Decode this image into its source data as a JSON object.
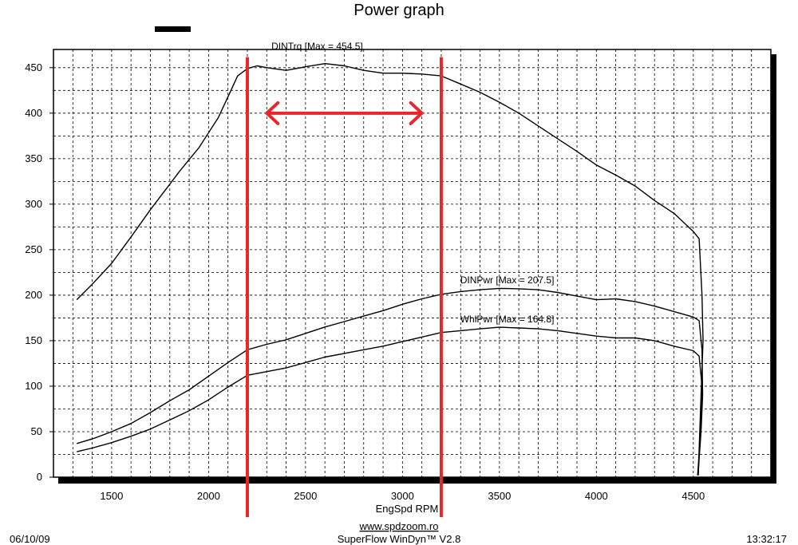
{
  "title": "Power graph",
  "footer": {
    "date": "06/10/09",
    "website": "www.spdzoom.ro",
    "software": "SuperFlow WinDyn™ V2.8",
    "time": "13:32:17"
  },
  "colors": {
    "annotation": "#e8262b",
    "curve": "#000000",
    "grid": "#000000",
    "legend_swatch": "#000000"
  },
  "chart_data": {
    "type": "line",
    "title": "Power graph",
    "xlabel": "EngSpd  RPM",
    "ylabel": "",
    "xlim": [
      1200,
      4900
    ],
    "ylim": [
      0,
      470
    ],
    "x_ticks": [
      1500,
      2000,
      2500,
      3000,
      3500,
      4000,
      4500
    ],
    "y_ticks": [
      0,
      50,
      100,
      150,
      200,
      250,
      300,
      350,
      400,
      450
    ],
    "grid": true,
    "series": [
      {
        "name": "DINTrq",
        "label": "DINTrq [Max = 454.5]",
        "max": 454.5,
        "x": [
          1320,
          1400,
          1500,
          1600,
          1700,
          1800,
          1850,
          1950,
          2050,
          2100,
          2150,
          2200,
          2250,
          2300,
          2400,
          2500,
          2600,
          2700,
          2800,
          2900,
          3000,
          3100,
          3200,
          3300,
          3400,
          3500,
          3600,
          3700,
          3800,
          3900,
          4000,
          4100,
          4200,
          4300,
          4400,
          4500,
          4530,
          4545,
          4550,
          4540,
          4530,
          4525
        ],
        "values": [
          195,
          212,
          235,
          264,
          294,
          322,
          336,
          362,
          395,
          418,
          441,
          449,
          452,
          450,
          447,
          451,
          454.5,
          452,
          447,
          444,
          444,
          443,
          441,
          432,
          423,
          412,
          400,
          386,
          372,
          358,
          343,
          332,
          320,
          304,
          290,
          270,
          262,
          200,
          150,
          90,
          30,
          2
        ]
      },
      {
        "name": "DINPwr",
        "label": "DINPwr [Max = 207.5]",
        "max": 207.5,
        "x": [
          1320,
          1400,
          1500,
          1600,
          1700,
          1800,
          1900,
          2000,
          2100,
          2200,
          2300,
          2400,
          2500,
          2600,
          2700,
          2800,
          2900,
          3000,
          3100,
          3200,
          3300,
          3400,
          3500,
          3600,
          3700,
          3800,
          3900,
          4000,
          4100,
          4200,
          4300,
          4400,
          4500,
          4530,
          4545,
          4548,
          4540,
          4530,
          4525
        ],
        "values": [
          37,
          42,
          50,
          59,
          71,
          84,
          96,
          111,
          126,
          140,
          146,
          151,
          158,
          165,
          171,
          177,
          183,
          190,
          196,
          201,
          204,
          206,
          207.5,
          207,
          206,
          203,
          199,
          195,
          196,
          193,
          188,
          182,
          176,
          172,
          140,
          90,
          50,
          20,
          2
        ]
      },
      {
        "name": "WhlPwr",
        "label": "WhlPwr [Max = 164.8]",
        "max": 164.8,
        "x": [
          1320,
          1400,
          1500,
          1600,
          1700,
          1800,
          1900,
          2000,
          2100,
          2200,
          2300,
          2400,
          2500,
          2600,
          2700,
          2800,
          2900,
          3000,
          3100,
          3200,
          3300,
          3400,
          3500,
          3600,
          3700,
          3800,
          3900,
          4000,
          4100,
          4200,
          4300,
          4400,
          4500,
          4530,
          4545,
          4540,
          4530,
          4522
        ],
        "values": [
          28,
          32,
          38,
          45,
          53,
          63,
          73,
          85,
          99,
          112,
          116,
          120,
          126,
          132,
          136,
          140,
          144,
          149,
          154,
          159,
          161,
          163,
          164.8,
          164,
          163,
          161,
          158,
          155,
          153,
          153,
          150,
          144,
          139,
          133,
          100,
          60,
          25,
          2
        ]
      }
    ],
    "annotations": {
      "vertical_lines_x": [
        2200,
        3200
      ],
      "arrow_x_range": [
        2300,
        3100
      ],
      "arrow_y": 400
    }
  }
}
